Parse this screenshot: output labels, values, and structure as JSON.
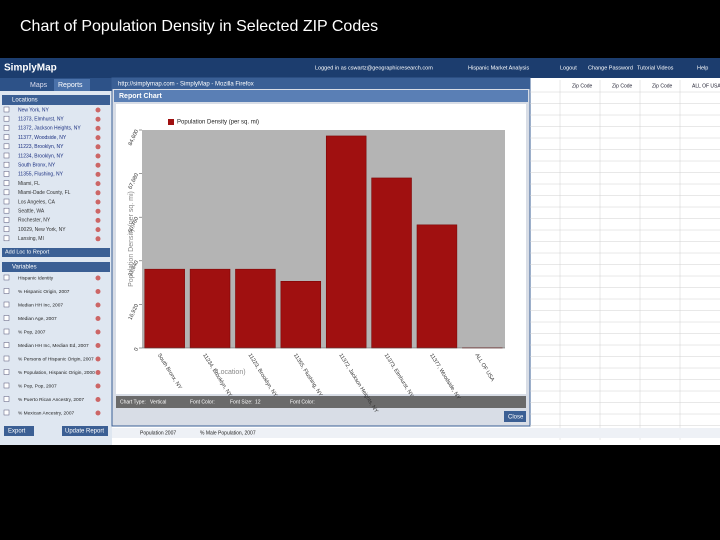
{
  "slide_title": "Chart of Population Density in Selected ZIP Codes",
  "app": {
    "brand": "SimplyMap",
    "tabs": [
      "Maps",
      "Reports"
    ],
    "top_links": [
      "Logged in as cswartz@geographicresearch.com",
      "Hispanic Market Analysis",
      "Logout",
      "Change Password",
      "Tutorial Videos",
      "Help"
    ],
    "locations_title": "Locations",
    "locations": [
      "New York, NY",
      "11373, Elmhurst, NY",
      "11372, Jackson Heights, NY",
      "11377, Woodside, NY",
      "11223, Brooklyn, NY",
      "11234, Brooklyn, NY",
      "South Bronx, NY",
      "11355, Flushing, NY",
      "Miami, FL",
      "Miami-Dade County, FL",
      "Los Angeles, CA",
      "Seattle, WA",
      "Rochester, NY",
      "10029, New York, NY",
      "Lansing, MI"
    ],
    "add_to_report": "Add Loc to Report",
    "variables_title": "Variables",
    "variables": [
      "Hispanic Identity",
      "% Hispanic Origin, 2007",
      "Median HH Inc, 2007",
      "Median Age, 2007",
      "% Pop, 2007",
      "Median HH Inc, Median Ed, 2007",
      "% Persons of Hispanic Origin, 2007",
      "% Population, Hispanic Origin, 2000",
      "% Pop, Pop, 2007",
      "% Puerto Rican Ancestry, 2007",
      "% Mexican Ancestry, 2007"
    ],
    "buttons": [
      "Export",
      "Update Report"
    ],
    "table_headers": [
      "Zip Code",
      "Zip Code",
      "Zip Code",
      "ALL OF USA"
    ],
    "table_last_row": [
      "Population 2007",
      "% Male Population, 2007"
    ]
  },
  "popup": {
    "window_title": "http://simplymap.com - SimplyMap - Mozilla Firefox",
    "header": "Report Chart",
    "controls": [
      "Chart Type:",
      "Vertical",
      "Font Color:",
      "Font Size:",
      "12",
      "Font Color:"
    ],
    "close": "Close"
  },
  "chart_data": {
    "type": "bar",
    "legend": "Population Density (per sq. mi)",
    "y_label": "Population Density (per sq. mi)",
    "x_label": "(Location)",
    "categories": [
      "South Bronx, NY",
      "11234, Brooklyn, NY",
      "11223, Brooklyn, NY",
      "11355, Flushing, NY",
      "11372, Jackson Heights, NY",
      "11373, Elmhurst, NY",
      "11377, Woodside, NY",
      "ALL OF USA"
    ],
    "values": [
      30600,
      30600,
      30600,
      25900,
      82300,
      66000,
      47800,
      83
    ],
    "color": "#a01010",
    "ylim": [
      0,
      84600
    ],
    "yticks": [
      0,
      {
        "value": 16920,
        "label": "16,920"
      },
      {
        "value": 33840,
        "label": "33,840"
      },
      {
        "value": 50760,
        "label": "50,760"
      },
      {
        "value": 67680,
        "label": "67,680"
      },
      {
        "value": 84600,
        "label": "84,600"
      }
    ],
    "grid": false
  }
}
